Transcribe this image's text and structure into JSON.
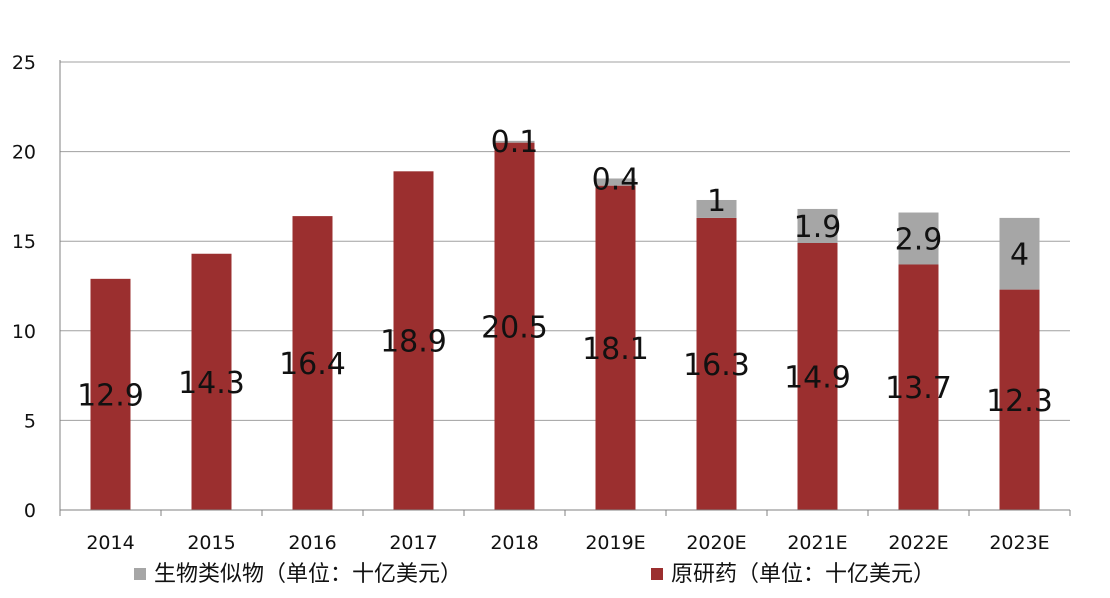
{
  "chart_data": {
    "type": "bar",
    "stacked": true,
    "categories": [
      "2014",
      "2015",
      "2016",
      "2017",
      "2018",
      "2019E",
      "2020E",
      "2021E",
      "2022E",
      "2023E"
    ],
    "series": [
      {
        "name": "原研药（单位：十亿美元）",
        "color": "#9b2f2f",
        "values": [
          12.9,
          14.3,
          16.4,
          18.9,
          20.5,
          18.1,
          16.3,
          14.9,
          13.7,
          12.3
        ],
        "labels": [
          "12.9",
          "14.3",
          "16.4",
          "18.9",
          "20.5",
          "18.1",
          "16.3",
          "14.9",
          "13.7",
          "12.3"
        ]
      },
      {
        "name": "生物类似物（单位：十亿美元）",
        "color": "#a6a6a6",
        "values": [
          null,
          null,
          null,
          null,
          0.1,
          0.4,
          1,
          1.9,
          2.9,
          4
        ],
        "labels": [
          "",
          "",
          "",
          "",
          "0.1",
          "0.4",
          "1",
          "1.9",
          "2.9",
          "4"
        ]
      }
    ],
    "ylim": [
      0,
      25
    ],
    "yticks": [
      0,
      5,
      10,
      15,
      20,
      25
    ],
    "ytick_labels": [
      "0",
      "5",
      "10",
      "15",
      "20",
      "25"
    ],
    "grid": true,
    "legend_position": "bottom",
    "legend_order": [
      1,
      0
    ]
  }
}
